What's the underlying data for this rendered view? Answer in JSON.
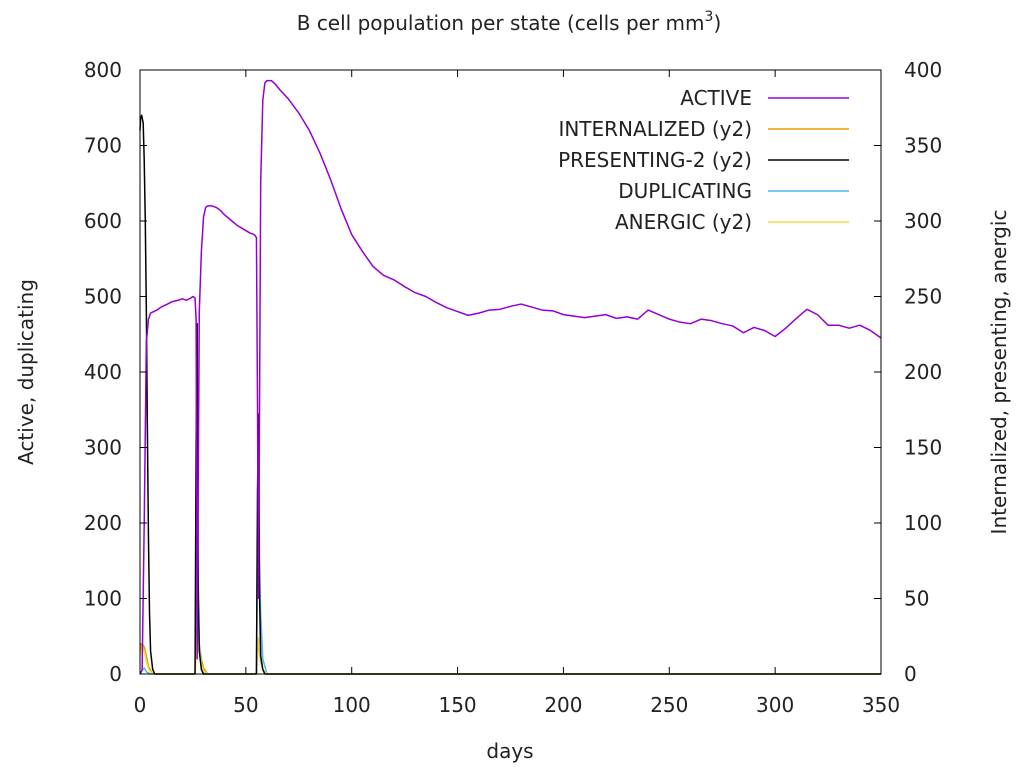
{
  "chart_data": {
    "type": "line",
    "title": "B cell population  per state (cells per mm",
    "title_superscript": "3",
    "title_suffix": ")",
    "xlabel": "days",
    "ylabel": "Active, duplicating",
    "y2label": "Internalized, presenting, anergic",
    "xlim": [
      0,
      350
    ],
    "ylim": [
      0,
      800
    ],
    "y2lim": [
      0,
      400
    ],
    "xticks": [
      "0",
      "50",
      "100",
      "150",
      "200",
      "250",
      "300",
      "350"
    ],
    "yticks": [
      "0",
      "100",
      "200",
      "300",
      "400",
      "500",
      "600",
      "700",
      "800"
    ],
    "y2ticks": [
      "0",
      "50",
      "100",
      "150",
      "200",
      "250",
      "300",
      "350",
      "400"
    ],
    "grid": false,
    "legend_position": "top-right",
    "series": [
      {
        "name": "ACTIVE",
        "axis": "y",
        "color": "#9400d3",
        "x": [
          0,
          1,
          2,
          3,
          4,
          5,
          8,
          10,
          13,
          15,
          18,
          20,
          22,
          24,
          25,
          26,
          26.5,
          27,
          27.5,
          28,
          29,
          30,
          31,
          32,
          34,
          36,
          38,
          40,
          43,
          46,
          49,
          52,
          54,
          55,
          55.5,
          56,
          57,
          58,
          59,
          60,
          62,
          64,
          66,
          70,
          75,
          80,
          85,
          90,
          95,
          100,
          105,
          110,
          115,
          120,
          125,
          130,
          135,
          140,
          145,
          150,
          155,
          160,
          165,
          170,
          175,
          180,
          185,
          190,
          195,
          200,
          205,
          210,
          215,
          220,
          225,
          230,
          235,
          240,
          245,
          250,
          255,
          260,
          265,
          270,
          275,
          280,
          285,
          290,
          295,
          300,
          305,
          310,
          315,
          320,
          325,
          330,
          335,
          340,
          345,
          350
        ],
        "y": [
          0,
          5,
          200,
          440,
          470,
          478,
          482,
          486,
          490,
          493,
          495,
          497,
          495,
          498,
          500,
          498,
          470,
          20,
          250,
          480,
          560,
          605,
          618,
          620,
          620,
          618,
          614,
          608,
          601,
          594,
          589,
          584,
          582,
          578,
          360,
          100,
          650,
          760,
          783,
          786,
          786,
          781,
          774,
          762,
          743,
          720,
          690,
          655,
          616,
          582,
          560,
          540,
          528,
          522,
          513,
          505,
          500,
          492,
          485,
          480,
          475,
          478,
          482,
          483,
          487,
          490,
          486,
          482,
          481,
          476,
          474,
          472,
          474,
          476,
          471,
          473,
          470,
          482,
          476,
          470,
          466,
          464,
          470,
          468,
          464,
          461,
          452,
          459,
          455,
          447,
          458,
          471,
          483,
          476,
          462,
          462,
          458,
          462,
          455,
          445
        ]
      },
      {
        "name": "INTERNALIZED (y2)",
        "axis": "y2",
        "color": "#e69f00",
        "x": [
          0,
          0.5,
          1,
          2,
          3,
          4,
          6,
          26,
          27,
          27.5,
          28,
          29,
          30,
          32,
          55,
          55.5,
          56,
          57,
          58,
          60,
          350
        ],
        "y": [
          15,
          20,
          20,
          18,
          12,
          5,
          0,
          0,
          60,
          45,
          20,
          10,
          4,
          0,
          0,
          12,
          22,
          8,
          3,
          0,
          0
        ]
      },
      {
        "name": "PRESENTING-2 (y2)",
        "axis": "y2",
        "color": "#000000",
        "x": [
          0,
          0.3,
          0.8,
          1.5,
          2,
          2.5,
          3,
          3.5,
          4,
          4.5,
          5,
          6,
          7,
          26,
          26.5,
          27,
          27.5,
          28,
          29,
          30,
          55,
          55.5,
          56,
          56.5,
          57,
          58,
          59,
          350
        ],
        "y": [
          360,
          368,
          370,
          365,
          340,
          300,
          240,
          160,
          90,
          40,
          15,
          3,
          0,
          0,
          150,
          232,
          60,
          15,
          3,
          0,
          0,
          120,
          172,
          50,
          12,
          3,
          0,
          0
        ]
      },
      {
        "name": "DUPLICATING",
        "axis": "y",
        "color": "#56b4e9",
        "x": [
          0,
          1,
          2,
          3,
          5,
          26,
          27,
          27.5,
          28,
          29,
          31,
          55,
          55.5,
          56,
          57,
          58,
          60,
          350
        ],
        "y": [
          0,
          5,
          8,
          3,
          0,
          0,
          100,
          90,
          40,
          10,
          0,
          0,
          175,
          180,
          80,
          20,
          0,
          0
        ]
      },
      {
        "name": "ANERGIC (y2)",
        "axis": "y2",
        "color": "#f0e442",
        "x": [
          0,
          1,
          2,
          3,
          4,
          6,
          26,
          27,
          27.5,
          28,
          29,
          30,
          32,
          55,
          56,
          57,
          58,
          60,
          350
        ],
        "y": [
          12,
          18,
          15,
          8,
          3,
          0,
          0,
          25,
          35,
          15,
          6,
          2,
          0,
          0,
          24,
          10,
          3,
          0,
          0
        ]
      }
    ]
  }
}
